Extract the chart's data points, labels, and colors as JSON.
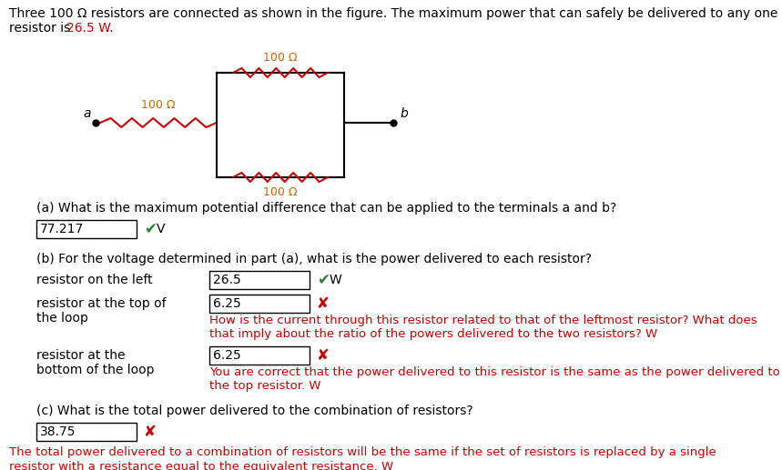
{
  "bg_color": "#ffffff",
  "title_line1": "Three 100 Ω resistors are connected as shown in the figure. The maximum power that can safely be delivered to any one",
  "title_line2_plain": "resistor is ",
  "title_line2_highlight": "26.5 W.",
  "circuit": {
    "label_top": "100 Ω",
    "label_left": "100 Ω",
    "label_bottom": "100 Ω",
    "node_a": "a",
    "node_b": "b"
  },
  "part_a_question": "(a) What is the maximum potential difference that can be applied to the terminals a and b?",
  "part_a_answer": "77.217",
  "part_a_unit": "V",
  "part_a_correct": true,
  "part_b_question": "(b) For the voltage determined in part (a), what is the power delivered to each resistor?",
  "part_b_rows": [
    {
      "label_line1": "resistor on the left",
      "label_line2": "",
      "answer": "26.5",
      "correct": true,
      "feedback_line1": "",
      "feedback_line2": ""
    },
    {
      "label_line1": "resistor at the top of",
      "label_line2": "the loop",
      "answer": "6.25",
      "correct": false,
      "feedback_line1": "How is the current through this resistor related to that of the leftmost resistor? What does",
      "feedback_line2": "that imply about the ratio of the powers delivered to the two resistors? W"
    },
    {
      "label_line1": "resistor at the",
      "label_line2": "bottom of the loop",
      "answer": "6.25",
      "correct": false,
      "feedback_line1": "You are correct that the power delivered to this resistor is the same as the power delivered to",
      "feedback_line2": "the top resistor. W"
    }
  ],
  "part_c_question": "(c) What is the total power delivered to the combination of resistors?",
  "part_c_answer": "38.75",
  "part_c_correct": false,
  "part_c_feedback_line1": "The total power delivered to a combination of resistors will be the same if the set of resistors is replaced by a single",
  "part_c_feedback_line2": "resistor with a resistance equal to the equivalent resistance. W",
  "colors": {
    "black": "#000000",
    "red": "#cc0000",
    "green": "#2e7d32",
    "resistor": "#cc0000",
    "label_color": "#cc6600"
  },
  "font_main": 10,
  "font_small": 9.5
}
